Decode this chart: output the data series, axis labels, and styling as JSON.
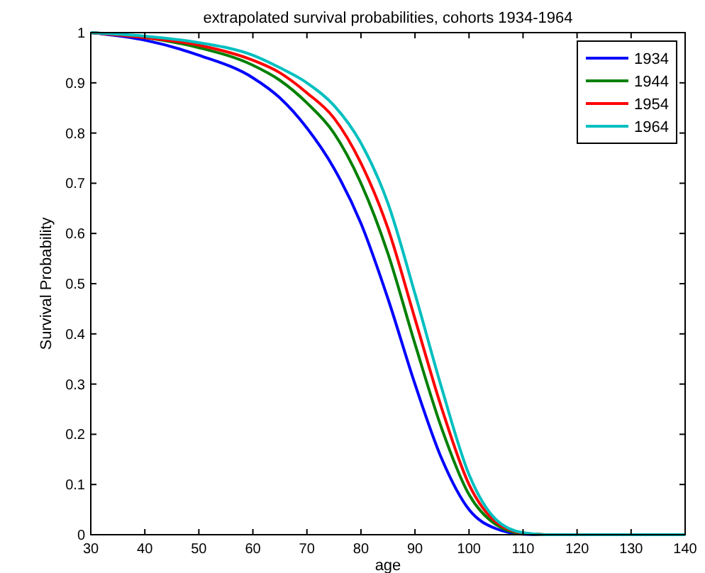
{
  "chart_data": {
    "type": "line",
    "title": "extrapolated survival probabilities, cohorts 1934-1964",
    "xlabel": "age",
    "ylabel": "Survival Probability",
    "x": [
      30,
      40,
      50,
      60,
      65,
      70,
      75,
      80,
      85,
      90,
      95,
      100,
      105,
      110,
      115,
      140
    ],
    "series": [
      {
        "name": "1934",
        "color": "#0000ff",
        "values": [
          1,
          0.985,
          0.955,
          0.91,
          0.87,
          0.81,
          0.73,
          0.62,
          0.47,
          0.3,
          0.15,
          0.05,
          0.012,
          0.001,
          0,
          0
        ]
      },
      {
        "name": "1944",
        "color": "#008000",
        "values": [
          1,
          0.99,
          0.97,
          0.935,
          0.905,
          0.86,
          0.8,
          0.7,
          0.56,
          0.38,
          0.21,
          0.08,
          0.02,
          0.002,
          0,
          0
        ]
      },
      {
        "name": "1954",
        "color": "#ff0000",
        "values": [
          1,
          0.99,
          0.975,
          0.945,
          0.92,
          0.88,
          0.83,
          0.74,
          0.61,
          0.43,
          0.25,
          0.1,
          0.025,
          0.003,
          0,
          0
        ]
      },
      {
        "name": "1964",
        "color": "#00bfbf",
        "values": [
          1,
          0.993,
          0.98,
          0.955,
          0.93,
          0.9,
          0.855,
          0.78,
          0.66,
          0.48,
          0.29,
          0.12,
          0.03,
          0.004,
          0,
          0
        ]
      }
    ],
    "xlim": [
      30,
      140
    ],
    "xticks": [
      30,
      40,
      50,
      60,
      70,
      80,
      90,
      100,
      110,
      120,
      130,
      140
    ],
    "ylim": [
      0,
      1
    ],
    "yticks": [
      0,
      0.1,
      0.2,
      0.3,
      0.4,
      0.5,
      0.6,
      0.7,
      0.8,
      0.9,
      1
    ],
    "grid": false,
    "legend": "top right",
    "marker": "none",
    "line_style": "solid"
  }
}
